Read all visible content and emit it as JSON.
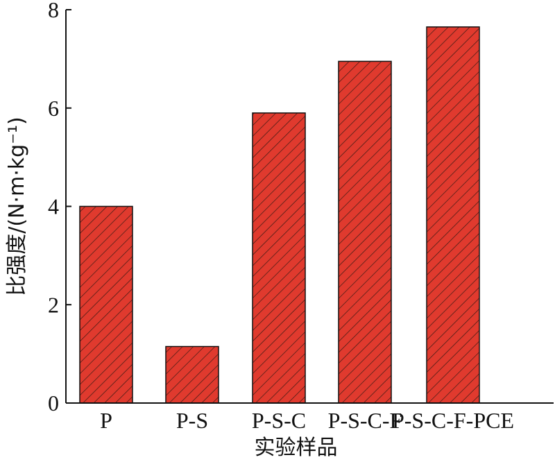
{
  "chart_data": {
    "type": "bar",
    "categories": [
      "P",
      "P-S",
      "P-S-C",
      "P-S-C-F",
      "P-S-C-F-PCE"
    ],
    "values": [
      4.0,
      1.15,
      5.9,
      6.95,
      7.65
    ],
    "title": "",
    "xlabel": "实验样品",
    "ylabel": "比强度/(N·m·kg⁻¹)",
    "ylim": [
      0,
      8
    ],
    "yticks": [
      0,
      2,
      4,
      6,
      8
    ],
    "grid": false,
    "legend": "none",
    "bar_color": "#e03a2e",
    "hatch_color": "#3a1a14",
    "hatch": "diagonal"
  }
}
